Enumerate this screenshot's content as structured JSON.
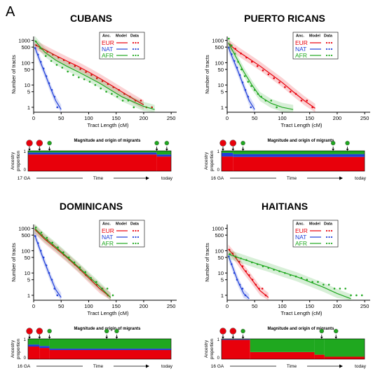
{
  "figure": {
    "panel_letter": "A",
    "model_header": {
      "anc": "Anc.",
      "model": "Model",
      "data": "Data"
    },
    "ancestries": [
      {
        "key": "EUR",
        "label": "EUR",
        "color": "#e8000b"
      },
      {
        "key": "NAT",
        "label": "NAT",
        "color": "#1f3fd8"
      },
      {
        "key": "AFR",
        "label": "AFR",
        "color": "#1fa81f"
      }
    ],
    "hist_ylabel": "Number of tracts",
    "hist_xlabel": "Tract Length (cM)",
    "migration_title": "Magnitude and origin of migrants",
    "ancestry_ylabel_line1": "Ancestry",
    "ancestry_ylabel_line2": "proportion",
    "time_label": "Time",
    "today_label": "today"
  },
  "chart_data": [
    {
      "type": "line",
      "title": "CUBANS",
      "xlabel": "Tract Length (cM)",
      "ylabel": "Number of tracts",
      "yscale": "log",
      "xlim": [
        0,
        260
      ],
      "ylim": [
        0.6,
        1500
      ],
      "xticks": [
        0,
        50,
        100,
        150,
        200,
        250
      ],
      "yticks": [
        1,
        5,
        10,
        50,
        100,
        500,
        1000
      ],
      "series": [
        {
          "name": "EUR",
          "color": "#e8000b",
          "x": [
            2,
            20,
            40,
            60,
            80,
            100,
            120,
            140,
            160,
            180,
            200
          ],
          "y": [
            650,
            380,
            210,
            120,
            70,
            38,
            20,
            10,
            5,
            2.5,
            1.3
          ],
          "points_x": [
            5,
            15,
            25,
            35,
            45,
            55,
            65,
            75,
            85,
            95,
            105,
            115,
            125,
            135,
            145,
            155,
            165,
            175,
            185,
            195,
            205,
            215
          ],
          "points_y": [
            600,
            420,
            310,
            230,
            170,
            130,
            95,
            70,
            52,
            38,
            28,
            20,
            15,
            11,
            8,
            6,
            4,
            3,
            2,
            2,
            1,
            1
          ]
        },
        {
          "name": "NAT",
          "color": "#1f3fd8",
          "x": [
            2,
            10,
            20,
            30,
            40,
            50
          ],
          "y": [
            500,
            150,
            35,
            8,
            2,
            0.8
          ],
          "points_x": [
            3,
            8,
            13,
            18,
            23,
            28,
            33,
            38,
            43
          ],
          "points_y": [
            450,
            230,
            110,
            55,
            25,
            12,
            6,
            3,
            1
          ]
        },
        {
          "name": "AFR",
          "color": "#1fa81f",
          "x": [
            2,
            20,
            40,
            60,
            80,
            100,
            120,
            140,
            160,
            180,
            200,
            220
          ],
          "y": [
            1000,
            300,
            130,
            70,
            40,
            22,
            12,
            6,
            3,
            1.8,
            1.1,
            0.8
          ],
          "points_x": [
            4,
            12,
            22,
            32,
            42,
            52,
            62,
            72,
            82,
            92,
            102,
            112,
            122,
            132,
            142,
            152,
            162,
            172,
            182
          ],
          "points_y": [
            900,
            450,
            200,
            120,
            80,
            60,
            40,
            28,
            22,
            18,
            14,
            10,
            7,
            5,
            4,
            3,
            2,
            2,
            1
          ]
        }
      ],
      "migration": {
        "gen_start_label": "17 GA",
        "pulse_positions": [
          0.0,
          0.08,
          0.15,
          0.9,
          0.97
        ],
        "pulse_colors": [
          "#e8000b",
          "#e8000b",
          "#1fa81f",
          "#1fa81f",
          "#1fa81f"
        ],
        "layers": [
          {
            "segments": [
              [
                0,
                0.9,
                0.82,
                0.1,
                0.08
              ],
              [
                0.9,
                1.0,
                0.72,
                0.1,
                0.18
              ]
            ]
          }
        ]
      }
    },
    {
      "type": "line",
      "title": "PUERTO RICANS",
      "xlabel": "Tract Length (cM)",
      "ylabel": "Number of tracts",
      "yscale": "log",
      "xlim": [
        0,
        260
      ],
      "ylim": [
        0.6,
        1500
      ],
      "xticks": [
        0,
        50,
        100,
        150,
        200,
        250
      ],
      "yticks": [
        1,
        5,
        10,
        50,
        100,
        500,
        1000
      ],
      "series": [
        {
          "name": "EUR",
          "color": "#e8000b",
          "x": [
            2,
            20,
            40,
            60,
            80,
            100,
            120,
            140,
            160
          ],
          "y": [
            700,
            320,
            150,
            70,
            30,
            13,
            5,
            2,
            0.9
          ],
          "points_x": [
            5,
            15,
            25,
            35,
            45,
            55,
            65,
            75,
            85,
            95,
            105,
            115,
            125,
            135,
            145,
            155
          ],
          "points_y": [
            650,
            420,
            260,
            170,
            110,
            70,
            45,
            30,
            20,
            13,
            8,
            5,
            4,
            2,
            2,
            1
          ]
        },
        {
          "name": "NAT",
          "color": "#1f3fd8",
          "x": [
            2,
            10,
            20,
            30,
            40,
            50
          ],
          "y": [
            500,
            160,
            40,
            9,
            2,
            0.8
          ],
          "points_x": [
            3,
            8,
            13,
            18,
            23,
            28,
            33,
            38,
            43
          ],
          "points_y": [
            480,
            240,
            120,
            60,
            28,
            13,
            6,
            3,
            1
          ]
        },
        {
          "name": "AFR",
          "color": "#1fa81f",
          "x": [
            2,
            15,
            30,
            45,
            60,
            80,
            100,
            120
          ],
          "y": [
            800,
            200,
            40,
            10,
            3,
            1.5,
            1,
            0.8
          ],
          "points_x": [
            3,
            8,
            14,
            20,
            26,
            32,
            38,
            44,
            50,
            56,
            62,
            70,
            80,
            90
          ],
          "points_y": [
            1200,
            600,
            250,
            110,
            50,
            25,
            14,
            9,
            6,
            4,
            3,
            2,
            2,
            1
          ]
        }
      ],
      "migration": {
        "gen_start_label": "16 GA",
        "pulse_positions": [
          0.0,
          0.08,
          0.15,
          0.78,
          0.88
        ],
        "pulse_colors": [
          "#e8000b",
          "#e8000b",
          "#1fa81f",
          "#1fa81f",
          "#1fa81f"
        ],
        "layers": [
          {
            "segments": [
              [
                0,
                0.08,
                0.72,
                0.18,
                0.1
              ],
              [
                0.08,
                1.0,
                0.7,
                0.14,
                0.16
              ]
            ]
          }
        ]
      }
    },
    {
      "type": "line",
      "title": "DOMINICANS",
      "xlabel": "Tract Length (cM)",
      "ylabel": "Number of tracts",
      "yscale": "log",
      "xlim": [
        0,
        260
      ],
      "ylim": [
        0.6,
        1500
      ],
      "xticks": [
        0,
        50,
        100,
        150,
        200,
        250
      ],
      "yticks": [
        1,
        5,
        10,
        50,
        100,
        500,
        1000
      ],
      "series": [
        {
          "name": "EUR",
          "color": "#e8000b",
          "x": [
            2,
            20,
            40,
            60,
            80,
            100,
            120,
            140
          ],
          "y": [
            900,
            330,
            130,
            50,
            18,
            6,
            2,
            0.8
          ],
          "points_x": [
            5,
            15,
            25,
            35,
            45,
            55,
            65,
            75,
            85,
            95,
            105,
            115,
            125,
            135
          ],
          "points_y": [
            800,
            500,
            300,
            180,
            110,
            65,
            40,
            24,
            14,
            8,
            5,
            3,
            2,
            1
          ]
        },
        {
          "name": "NAT",
          "color": "#1f3fd8",
          "x": [
            2,
            10,
            20,
            30,
            40,
            50
          ],
          "y": [
            500,
            140,
            30,
            7,
            1.8,
            0.8
          ],
          "points_x": [
            3,
            8,
            13,
            18,
            23,
            28,
            33,
            38,
            43
          ],
          "points_y": [
            450,
            220,
            100,
            50,
            22,
            10,
            5,
            2,
            1
          ]
        },
        {
          "name": "AFR",
          "color": "#1fa81f",
          "x": [
            2,
            20,
            40,
            60,
            80,
            100,
            120,
            140
          ],
          "y": [
            1000,
            380,
            150,
            55,
            20,
            7,
            2.5,
            0.8
          ],
          "points_x": [
            4,
            14,
            24,
            34,
            44,
            54,
            64,
            74,
            84,
            94,
            104,
            114,
            124,
            134,
            144
          ],
          "points_y": [
            1100,
            650,
            380,
            230,
            140,
            85,
            50,
            30,
            18,
            11,
            6,
            4,
            2,
            2,
            1
          ]
        }
      ],
      "migration": {
        "gen_start_label": "16 GA",
        "pulse_positions": [
          0.0,
          0.08,
          0.15,
          0.55,
          0.62
        ],
        "pulse_colors": [
          "#e8000b",
          "#e8000b",
          "#1fa81f",
          "#1fa81f",
          "#1fa81f"
        ],
        "layers": [
          {
            "segments": [
              [
                0,
                0.08,
                0.62,
                0.1,
                0.28
              ],
              [
                0.08,
                0.15,
                0.55,
                0.1,
                0.35
              ],
              [
                0.15,
                1.0,
                0.45,
                0.07,
                0.48
              ]
            ]
          }
        ]
      }
    },
    {
      "type": "line",
      "title": "HAITIANS",
      "xlabel": "Tract Length (cM)",
      "ylabel": "Number of tracts",
      "yscale": "log",
      "xlim": [
        0,
        260
      ],
      "ylim": [
        0.6,
        1500
      ],
      "xticks": [
        0,
        50,
        100,
        150,
        200,
        250
      ],
      "yticks": [
        1,
        5,
        10,
        50,
        100,
        500,
        1000
      ],
      "series": [
        {
          "name": "EUR",
          "color": "#e8000b",
          "x": [
            2,
            15,
            30,
            45,
            60,
            75
          ],
          "y": [
            120,
            50,
            15,
            5,
            1.6,
            0.8
          ],
          "points_x": [
            4,
            10,
            16,
            22,
            28,
            34,
            40,
            46,
            52,
            58,
            64,
            70
          ],
          "points_y": [
            110,
            75,
            50,
            32,
            20,
            12,
            8,
            5,
            3,
            2,
            2,
            1
          ]
        },
        {
          "name": "NAT",
          "color": "#1f3fd8",
          "x": [
            2,
            10,
            20,
            30,
            40
          ],
          "y": [
            60,
            18,
            4,
            1.2,
            0.7
          ],
          "points_x": [
            3,
            8,
            13,
            18,
            23,
            28,
            33
          ],
          "points_y": [
            55,
            25,
            10,
            5,
            3,
            2,
            1
          ]
        },
        {
          "name": "AFR",
          "color": "#1fa81f",
          "x": [
            2,
            25,
            50,
            75,
            100,
            125,
            150,
            175,
            200,
            225
          ],
          "y": [
            70,
            45,
            28,
            18,
            11,
            7,
            4,
            2.3,
            1.2,
            0.7
          ],
          "points_x": [
            5,
            15,
            25,
            35,
            45,
            55,
            65,
            75,
            85,
            95,
            105,
            115,
            125,
            135,
            145,
            155,
            165,
            175,
            185,
            195,
            205,
            215,
            225,
            235,
            245
          ],
          "points_y": [
            70,
            55,
            45,
            38,
            30,
            25,
            20,
            17,
            14,
            12,
            10,
            8,
            7,
            6,
            5,
            4,
            4,
            3,
            3,
            2,
            2,
            2,
            1,
            1,
            1
          ]
        }
      ],
      "migration": {
        "gen_start_label": "16 GA",
        "pulse_positions": [
          0.0,
          0.08,
          0.15,
          0.7,
          0.8
        ],
        "pulse_colors": [
          "#e8000b",
          "#e8000b",
          "#1fa81f",
          "#1fa81f",
          "#1fa81f"
        ],
        "layers": [
          {
            "segments": [
              [
                0,
                0.2,
                0.95,
                0.03,
                0.02
              ],
              [
                0.2,
                0.65,
                0.35,
                0.0,
                0.65
              ],
              [
                0.65,
                0.72,
                0.22,
                0.0,
                0.78
              ],
              [
                0.72,
                1.0,
                0.12,
                0.0,
                0.88
              ]
            ]
          }
        ]
      }
    }
  ]
}
